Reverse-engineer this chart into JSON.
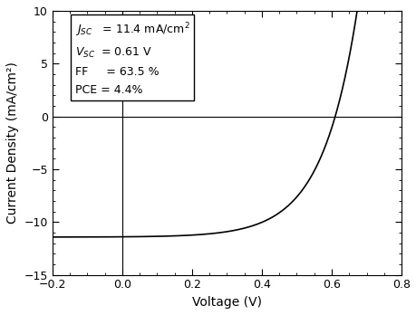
{
  "xlabel": "Voltage (V)",
  "ylabel": "Current Density (mA/cm²)",
  "xlim": [
    -0.2,
    0.8
  ],
  "ylim": [
    -15,
    10
  ],
  "xticks": [
    -0.2,
    0.0,
    0.2,
    0.4,
    0.6,
    0.8
  ],
  "yticks": [
    -15,
    -10,
    -5,
    0,
    5,
    10
  ],
  "Jsc": 11.4,
  "Voc": 0.61,
  "n_Vt": 0.1,
  "curve_color": "#000000",
  "background_color": "#ffffff",
  "box_facecolor": "#ffffff",
  "box_edgecolor": "#000000",
  "figsize": [
    4.6,
    3.48
  ],
  "dpi": 100
}
